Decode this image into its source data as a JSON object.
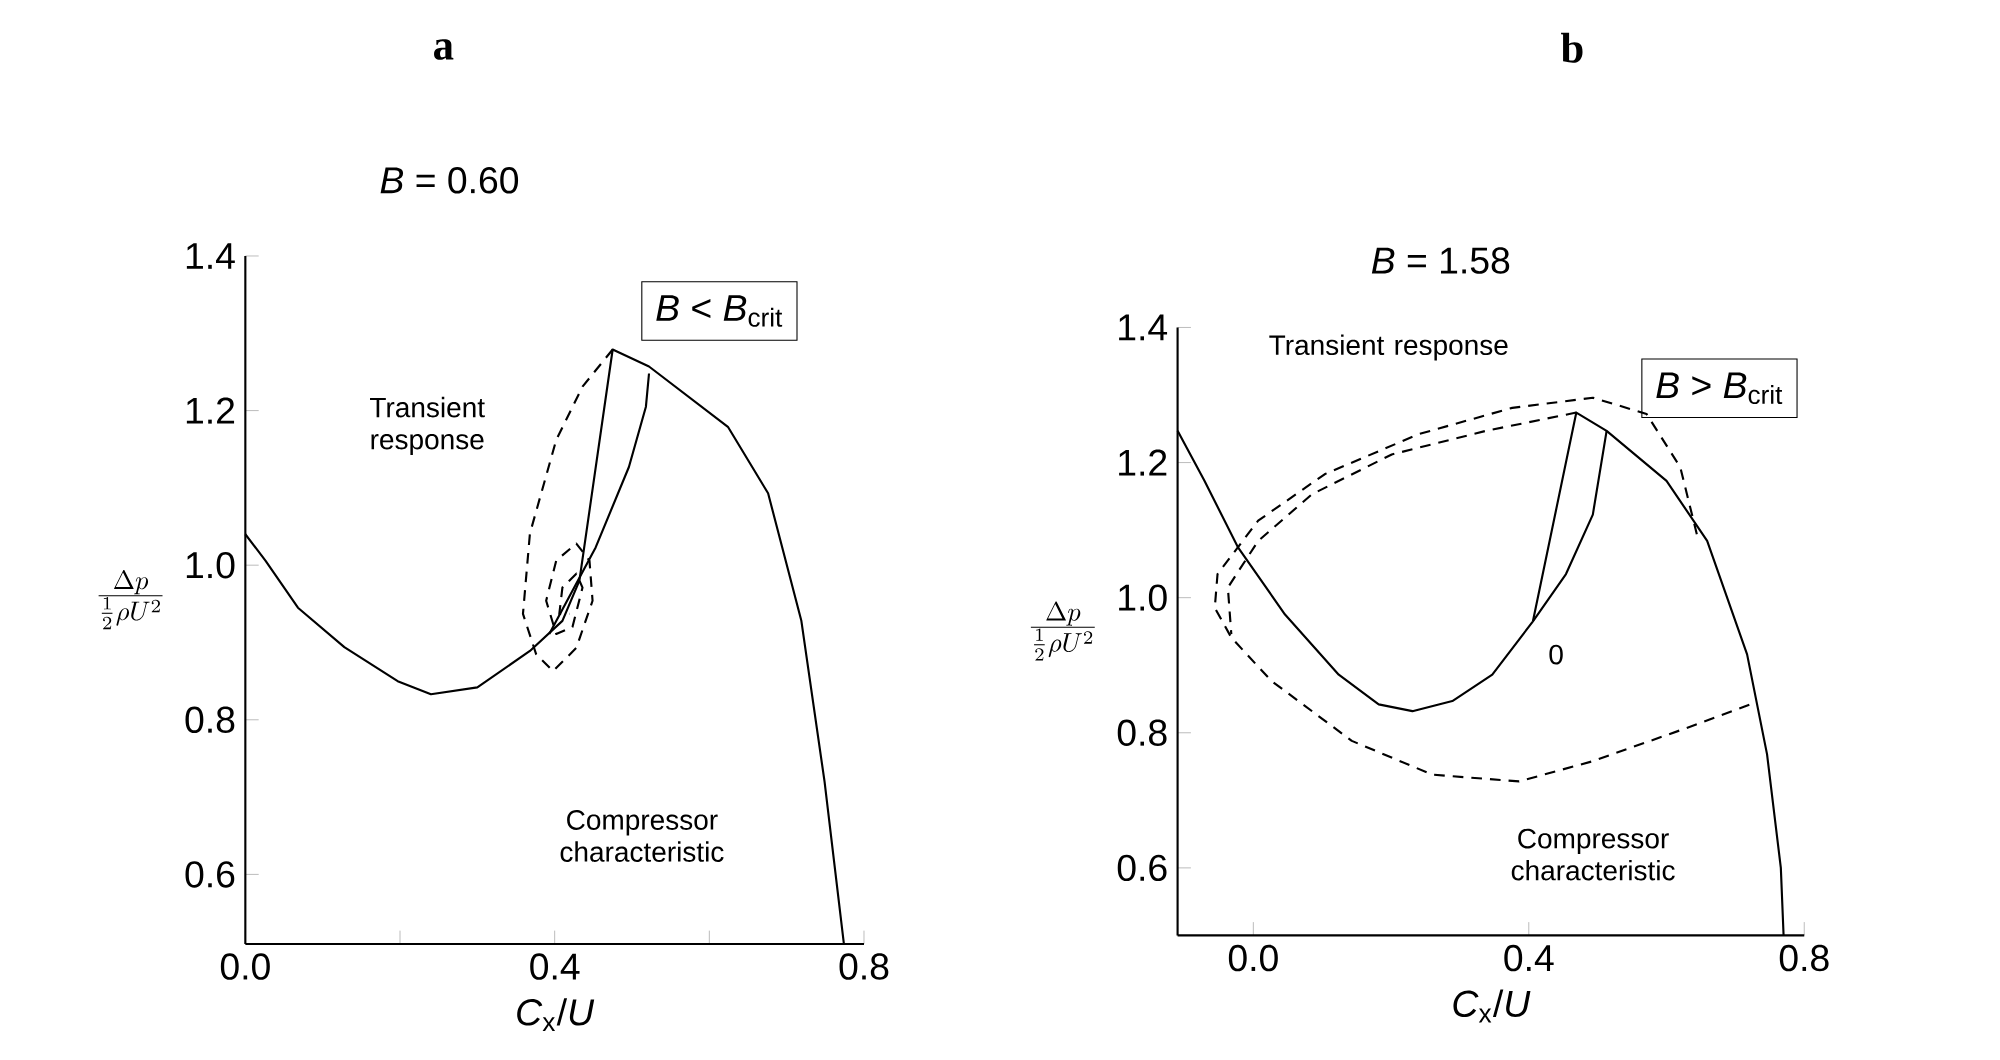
{
  "chart_data": [
    {
      "type": "line",
      "title": "a",
      "subtitle": "*B* = 0.60",
      "xlabel": "*C*$_{x}$/*U*",
      "ylabel": "\\frac{\\Delta p}{\\frac{1}{2}\\rho U^{2}}",
      "xlim": [
        0,
        0.8
      ],
      "ylim": [
        0.51,
        1.4
      ],
      "xticks": [
        {
          "value": 0,
          "label": "0.0"
        },
        {
          "value": 0.2,
          "label": null
        },
        {
          "value": 0.4,
          "label": "0.4"
        },
        {
          "value": 0.6,
          "label": null
        },
        {
          "value": 0.8,
          "label": "0.8"
        }
      ],
      "yticks": [
        {
          "value": 0.6,
          "label": "0.6"
        },
        {
          "value": 0.8,
          "label": "0.8"
        },
        {
          "value": 1.0,
          "label": "1.0"
        },
        {
          "value": 1.2,
          "label": "1.2"
        },
        {
          "value": 1.4,
          "label": "1.4"
        }
      ],
      "marker": "none",
      "annotations": [
        "*B* < *B*$_{crit}$",
        "Transient response",
        "Compressor characteristic"
      ],
      "series": [
        {
          "color": "#000000",
          "line_style": "solid",
          "x": [
            0.0,
            0.026,
            0.068,
            0.128,
            0.197,
            0.24,
            0.3,
            0.368,
            0.41,
            0.432,
            0.475,
            0.522,
            0.624,
            0.676,
            0.719,
            0.749,
            0.774
          ],
          "values": [
            1.04,
            1.006,
            0.945,
            0.894,
            0.85,
            0.833,
            0.842,
            0.889,
            0.928,
            0.98,
            1.279,
            1.257,
            1.179,
            1.093,
            0.928,
            0.72,
            0.51
          ]
        },
        {
          "color": "#000000",
          "line_style": "solid",
          "x": [
            0.393,
            0.453,
            0.496,
            0.518,
            0.522
          ],
          "values": [
            0.911,
            1.023,
            1.127,
            1.205,
            1.248
          ]
        },
        {
          "color": "#000000",
          "line_style": "dashed",
          "x": [
            0.475,
            0.436,
            0.402,
            0.368,
            0.359,
            0.376,
            0.398,
            0.428,
            0.449,
            0.445,
            0.428,
            0.402,
            0.389,
            0.402,
            0.423,
            0.436,
            0.428,
            0.41,
            0.406,
            0.419
          ],
          "values": [
            1.279,
            1.231,
            1.162,
            1.041,
            0.937,
            0.885,
            0.863,
            0.893,
            0.954,
            1.006,
            1.028,
            1.006,
            0.954,
            0.911,
            0.92,
            0.971,
            0.989,
            0.971,
            0.937,
            0.937
          ]
        }
      ]
    },
    {
      "type": "line",
      "title": "b",
      "subtitle": "*B* = 1.58",
      "xlabel": "*C*$_{x}$/*U*",
      "ylabel": "\\frac{\\Delta p}{\\frac{1}{2}\\rho U^{2}}",
      "xlim": [
        -0.11,
        0.8
      ],
      "ylim": [
        0.5,
        1.4
      ],
      "xticks": [
        {
          "value": 0,
          "label": "0.0"
        },
        {
          "value": 0.4,
          "label": "0.4"
        },
        {
          "value": 0.8,
          "label": "0.8"
        }
      ],
      "yticks": [
        {
          "value": 0.6,
          "label": "0.6"
        },
        {
          "value": 0.8,
          "label": "0.8"
        },
        {
          "value": 1.0,
          "label": "1.0"
        },
        {
          "value": 1.2,
          "label": "1.2"
        },
        {
          "value": 1.4,
          "label": "1.4"
        }
      ],
      "marker": "none",
      "annotations": [
        "*B* > *B*$_{crit}$",
        "Transient response",
        "Compressor characteristic",
        "0"
      ],
      "series": [
        {
          "color": "#000000",
          "line_style": "solid",
          "x": [
            -0.11,
            -0.071,
            -0.022,
            0.046,
            0.124,
            0.182,
            0.231,
            0.289,
            0.347,
            0.406,
            0.469,
            0.513,
            0.6,
            0.659,
            0.717,
            0.746,
            0.766,
            0.77
          ],
          "values": [
            1.247,
            1.173,
            1.074,
            0.975,
            0.886,
            0.842,
            0.832,
            0.847,
            0.886,
            0.965,
            1.274,
            1.247,
            1.173,
            1.084,
            0.916,
            0.768,
            0.6,
            0.5
          ]
        },
        {
          "color": "#000000",
          "line_style": "solid",
          "x": [
            0.406,
            0.454,
            0.493,
            0.513
          ],
          "values": [
            0.965,
            1.035,
            1.123,
            1.247
          ]
        },
        {
          "color": "#000000",
          "line_style": "dashed",
          "x": [
            0.469,
            0.338,
            0.201,
            0.085,
            0.007,
            -0.037,
            -0.032
          ],
          "values": [
            1.274,
            1.247,
            1.212,
            1.153,
            1.084,
            1.015,
            0.946
          ]
        },
        {
          "color": "#000000",
          "line_style": "dashed",
          "x": [
            0.644,
            0.62,
            0.571,
            0.493,
            0.376,
            0.24,
            0.104,
            0.007,
            -0.052,
            -0.056,
            -0.032,
            0.026,
            0.143,
            0.26,
            0.386,
            0.493,
            0.629,
            0.722
          ],
          "values": [
            1.094,
            1.193,
            1.272,
            1.296,
            1.281,
            1.242,
            1.183,
            1.114,
            1.035,
            0.985,
            0.941,
            0.877,
            0.788,
            0.738,
            0.728,
            0.758,
            0.807,
            0.842
          ]
        }
      ]
    }
  ]
}
